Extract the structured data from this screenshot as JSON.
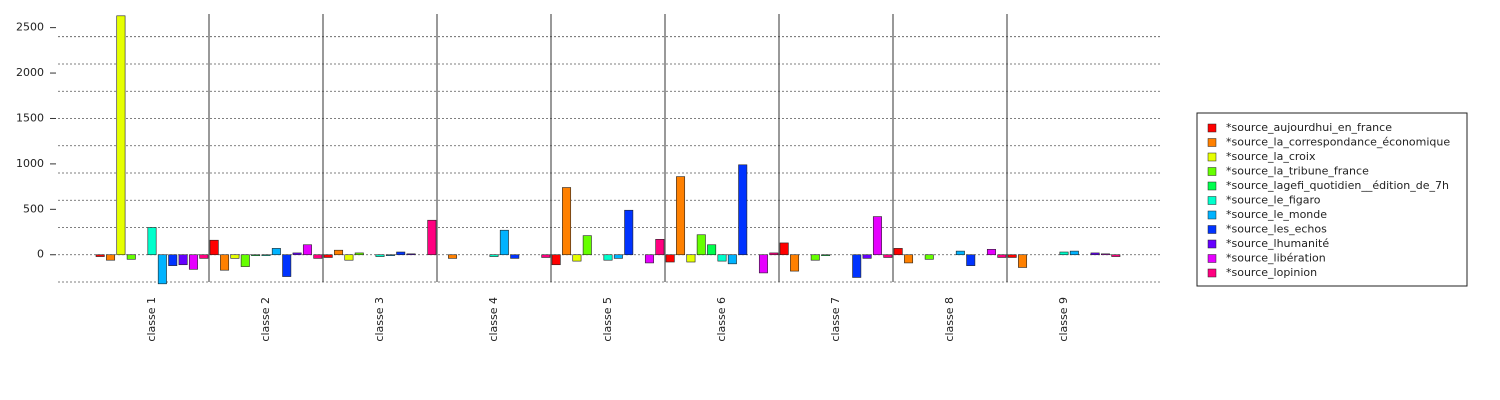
{
  "chart_data": {
    "type": "bar",
    "categories": [
      "classe 1",
      "classe 2",
      "classe 3",
      "classe 4",
      "classe 5",
      "classe 6",
      "classe 7",
      "classe 8",
      "classe 9"
    ],
    "series": [
      {
        "name": "*source_aujourdhui_en_france",
        "color": "#ff0000",
        "values": [
          -20,
          160,
          -30,
          0,
          -110,
          -80,
          130,
          70,
          -30
        ]
      },
      {
        "name": "*source_la_correspondance_économique",
        "color": "#ff8000",
        "values": [
          -60,
          -170,
          50,
          -40,
          740,
          860,
          -180,
          -90,
          -140
        ]
      },
      {
        "name": "*source_la_croix",
        "color": "#e6ff00",
        "values": [
          2630,
          -40,
          -60,
          0,
          -70,
          -80,
          0,
          0,
          0
        ]
      },
      {
        "name": "*source_la_tribune_france",
        "color": "#66ff00",
        "values": [
          -50,
          -130,
          20,
          0,
          210,
          220,
          -60,
          -50,
          0
        ]
      },
      {
        "name": "*source_lagefi_quotidien__édition_de_7h",
        "color": "#00ff4d",
        "values": [
          0,
          -10,
          0,
          0,
          0,
          110,
          -10,
          0,
          0
        ]
      },
      {
        "name": "*source_le_figaro",
        "color": "#00ffcc",
        "values": [
          300,
          -10,
          -20,
          -20,
          -60,
          -70,
          0,
          0,
          30
        ]
      },
      {
        "name": "*source_le_monde",
        "color": "#00b3ff",
        "values": [
          -320,
          70,
          -10,
          270,
          -40,
          -100,
          0,
          40,
          40
        ]
      },
      {
        "name": "*source_les_echos",
        "color": "#0033ff",
        "values": [
          -120,
          -240,
          30,
          -40,
          490,
          990,
          -250,
          -120,
          0
        ]
      },
      {
        "name": "*source_lhumanité",
        "color": "#6600ff",
        "values": [
          -110,
          20,
          10,
          0,
          0,
          0,
          -40,
          0,
          20
        ]
      },
      {
        "name": "*source_libération",
        "color": "#e600ff",
        "values": [
          -160,
          110,
          0,
          0,
          -90,
          -200,
          420,
          60,
          10
        ]
      },
      {
        "name": "*source_lopinion",
        "color": "#ff0080",
        "values": [
          -40,
          -40,
          380,
          -30,
          170,
          20,
          -30,
          -30,
          -20
        ]
      }
    ],
    "ylim": [
      -300,
      2650
    ],
    "yticks": [
      0,
      500,
      1000,
      1500,
      2000,
      2500
    ],
    "grid_lines": [
      -300,
      0,
      300,
      600,
      900,
      1200,
      1500,
      1800,
      2100,
      2400
    ],
    "legend": "right"
  }
}
